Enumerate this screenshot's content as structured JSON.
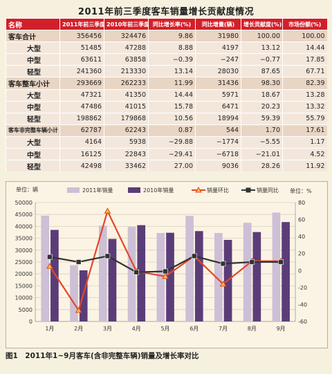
{
  "title": "2011年前三季度客车销量增长贡献度情况",
  "table": {
    "headers": [
      "名称",
      "2011年前三季度(辆)",
      "2010年前三季度(辆)",
      "同比增长率(%)",
      "同比增量(辆)",
      "增长贡献度(%)",
      "市场份额(%)"
    ],
    "rows": [
      {
        "kind": "sub",
        "name": "客车合计",
        "values": [
          "356456",
          "324476",
          "9.86",
          "31980",
          "100.00",
          "100.00"
        ]
      },
      {
        "kind": "row",
        "name": "大型",
        "values": [
          "51485",
          "47288",
          "8.88",
          "4197",
          "13.12",
          "14.44"
        ]
      },
      {
        "kind": "row",
        "name": "中型",
        "values": [
          "63611",
          "63858",
          "−0.39",
          "−247",
          "−0.77",
          "17.85"
        ]
      },
      {
        "kind": "row",
        "name": "轻型",
        "values": [
          "241360",
          "213330",
          "13.14",
          "28030",
          "87.65",
          "67.71"
        ]
      },
      {
        "kind": "sub",
        "name": "客车整车小计",
        "values": [
          "293669",
          "262233",
          "11.99",
          "31436",
          "98.30",
          "82.39"
        ]
      },
      {
        "kind": "row",
        "name": "大型",
        "values": [
          "47321",
          "41350",
          "14.44",
          "5971",
          "18.67",
          "13.28"
        ]
      },
      {
        "kind": "row",
        "name": "中型",
        "values": [
          "47486",
          "41015",
          "15.78",
          "6471",
          "20.23",
          "13.32"
        ]
      },
      {
        "kind": "row",
        "name": "轻型",
        "values": [
          "198862",
          "179868",
          "10.56",
          "18994",
          "59.39",
          "55.79"
        ]
      },
      {
        "kind": "sub",
        "name": "客车非完整车辆小计",
        "values": [
          "62787",
          "62243",
          "0.87",
          "544",
          "1.70",
          "17.61"
        ]
      },
      {
        "kind": "row",
        "name": "大型",
        "values": [
          "4164",
          "5938",
          "−29.88",
          "−1774",
          "−5.55",
          "1.17"
        ]
      },
      {
        "kind": "row",
        "name": "中型",
        "values": [
          "16125",
          "22843",
          "−29.41",
          "−6718",
          "−21.01",
          "4.52"
        ]
      },
      {
        "kind": "row",
        "name": "轻型",
        "values": [
          "42498",
          "33462",
          "27.00",
          "9036",
          "28.26",
          "11.92"
        ]
      }
    ]
  },
  "chart_data": {
    "type": "bar",
    "categories": [
      "1月",
      "2月",
      "3月",
      "4月",
      "5月",
      "6月",
      "7月",
      "8月",
      "9月"
    ],
    "series": [
      {
        "name": "2011年销量",
        "axis": "left",
        "kind": "bar",
        "color": "#cdbfd6",
        "values": [
          44500,
          23700,
          40300,
          39800,
          37200,
          44400,
          37200,
          41500,
          45800
        ]
      },
      {
        "name": "2010年销量",
        "axis": "left",
        "kind": "bar",
        "color": "#5a3d78",
        "values": [
          38500,
          21500,
          34700,
          40500,
          37300,
          38000,
          34300,
          37600,
          41800
        ]
      },
      {
        "name": "销量环比",
        "axis": "right",
        "kind": "line",
        "color": "#e2462b",
        "values": [
          5,
          -47,
          70,
          -1,
          -7,
          17,
          -16,
          11,
          11
        ]
      },
      {
        "name": "销量同比",
        "axis": "right",
        "kind": "line",
        "color": "#333333",
        "values": [
          16,
          10,
          17,
          -2,
          -1,
          17,
          8,
          10,
          10
        ]
      }
    ],
    "left_axis": {
      "unit": "单位：辆",
      "ylim": [
        0,
        50000
      ],
      "ticks": [
        "0",
        "5000",
        "10000",
        "15000",
        "20000",
        "25000",
        "30000",
        "35000",
        "40000",
        "45000",
        "50000"
      ]
    },
    "right_axis": {
      "unit": "单位：%",
      "ylim": [
        -60,
        80
      ],
      "ticks": [
        "-60",
        "-40",
        "-20",
        "0",
        "20",
        "40",
        "60",
        "80"
      ]
    },
    "grid": true,
    "legend": "top"
  },
  "caption": "图1　2011年1~9月客车(含非完整车辆)销量及增长率对比"
}
